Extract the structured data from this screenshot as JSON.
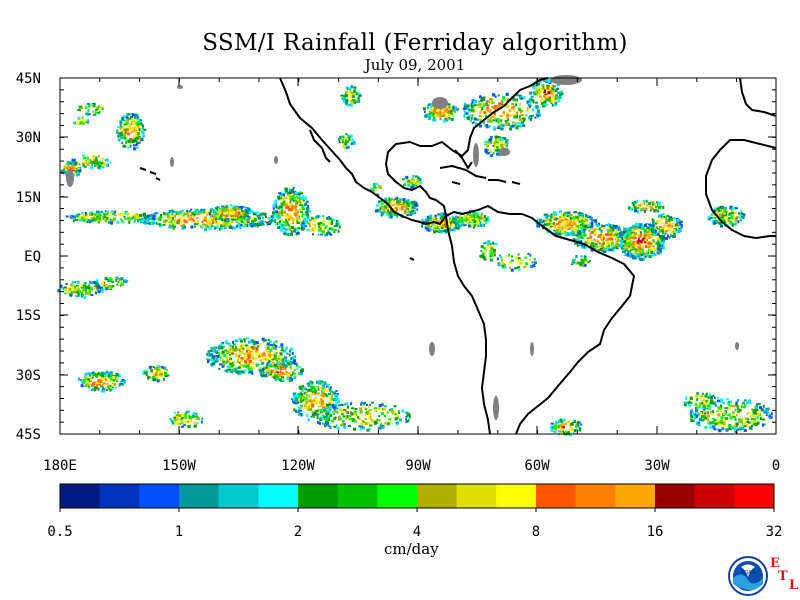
{
  "title": "SSM/I Rainfall (Ferriday algorithm)",
  "subtitle": "July 09, 2001",
  "lat_labels": [
    "45N",
    "30N",
    "15N",
    "EQ",
    "15S",
    "30S",
    "45S"
  ],
  "lon_labels": [
    "180E",
    "150W",
    "120W",
    "90W",
    "60W",
    "30W",
    "0"
  ],
  "colorbar": {
    "ticks": [
      "0.5",
      "1",
      "2",
      "4",
      "8",
      "16",
      "32"
    ],
    "unit": "cm/day",
    "colors": [
      "#001a80",
      "#0033bb",
      "#0050ff",
      "#00999a",
      "#00c8cc",
      "#00ffff",
      "#009900",
      "#00c000",
      "#00ff00",
      "#b0b000",
      "#e0e000",
      "#ffff00",
      "#ff5500",
      "#ff8000",
      "#ffa500",
      "#990000",
      "#cc0000",
      "#ff0000"
    ]
  },
  "logo": {
    "text": "NOAA",
    "letters": [
      "E",
      "T",
      "L"
    ]
  },
  "colors": {
    "land": "#000000",
    "terrain": "#808080",
    "ocean": "#ffffff"
  }
}
